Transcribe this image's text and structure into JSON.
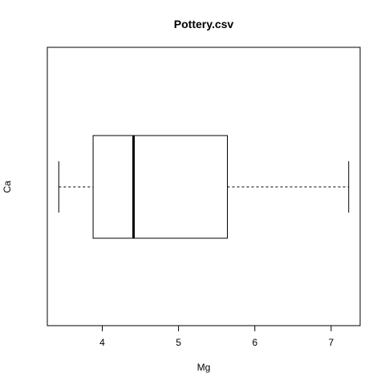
{
  "chart_data": {
    "type": "boxplot",
    "orientation": "horizontal",
    "title": "Pottery.csv",
    "xlabel": "Mg",
    "ylabel": "Ca",
    "xticks": [
      4,
      5,
      6,
      7
    ],
    "xlim": [
      3.28,
      7.38
    ],
    "grid": false,
    "box": {
      "whisker_low": 3.43,
      "q1": 3.88,
      "median": 4.41,
      "q3": 5.64,
      "whisker_high": 7.23
    }
  }
}
